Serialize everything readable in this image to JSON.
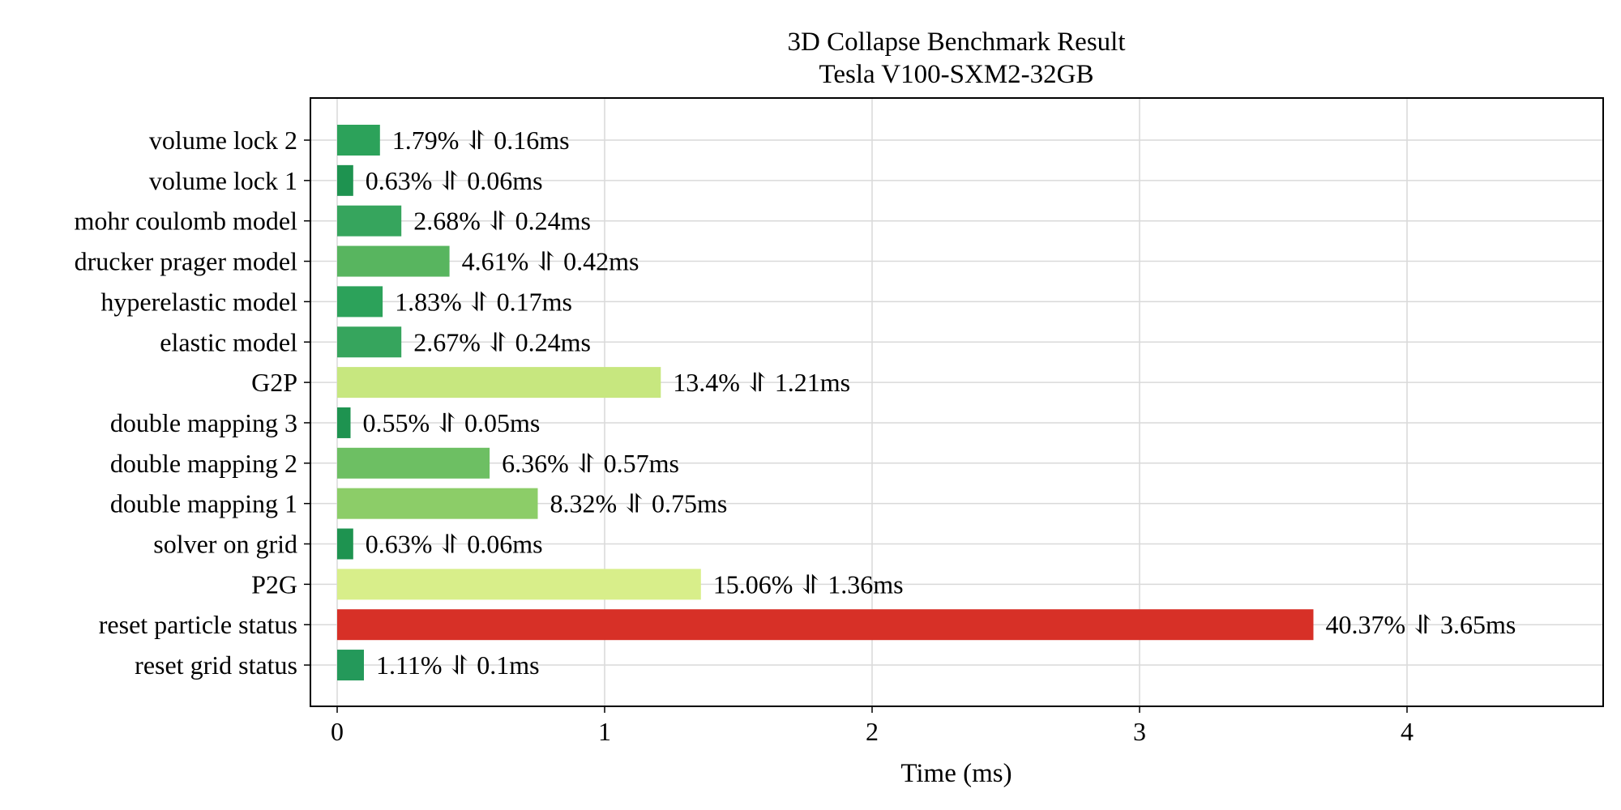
{
  "chart_data": {
    "type": "bar",
    "orientation": "horizontal",
    "title": "3D Collapse Benchmark Result",
    "subtitle": "Tesla V100-SXM2-32GB",
    "xlabel": "Time (ms)",
    "ylabel": "",
    "xlim": [
      -0.1,
      4.74
    ],
    "xticks": [
      0,
      1,
      2,
      3,
      4
    ],
    "grid": true,
    "categories": [
      "volume lock 2",
      "volume lock 1",
      "mohr coulomb model",
      "drucker prager model",
      "hyperelastic model",
      "elastic model",
      "G2P",
      "double mapping 3",
      "double mapping 2",
      "double mapping 1",
      "solver on grid",
      "P2G",
      "reset particle status",
      "reset grid status"
    ],
    "values": [
      0.16,
      0.06,
      0.24,
      0.42,
      0.17,
      0.24,
      1.21,
      0.05,
      0.57,
      0.75,
      0.06,
      1.36,
      3.65,
      0.1
    ],
    "bar_labels": [
      "1.79% ⥯ 0.16ms",
      "0.63% ⥯ 0.06ms",
      "2.68% ⥯ 0.24ms",
      "4.61% ⥯ 0.42ms",
      "1.83% ⥯ 0.17ms",
      "2.67% ⥯ 0.24ms",
      "13.4% ⥯ 1.21ms",
      "0.55% ⥯ 0.05ms",
      "6.36% ⥯ 0.57ms",
      "8.32% ⥯ 0.75ms",
      "0.63% ⥯ 0.06ms",
      "15.06% ⥯ 1.36ms",
      "40.37% ⥯ 3.65ms",
      "1.11% ⥯ 0.1ms"
    ],
    "colors": [
      "#2ca25a",
      "#1e9350",
      "#36a55d",
      "#58b55f",
      "#2ca25a",
      "#36a55d",
      "#c7e77f",
      "#1e9350",
      "#6dbf63",
      "#8ccd68",
      "#1e9350",
      "#d8ee8a",
      "#d73027",
      "#24995a"
    ]
  }
}
